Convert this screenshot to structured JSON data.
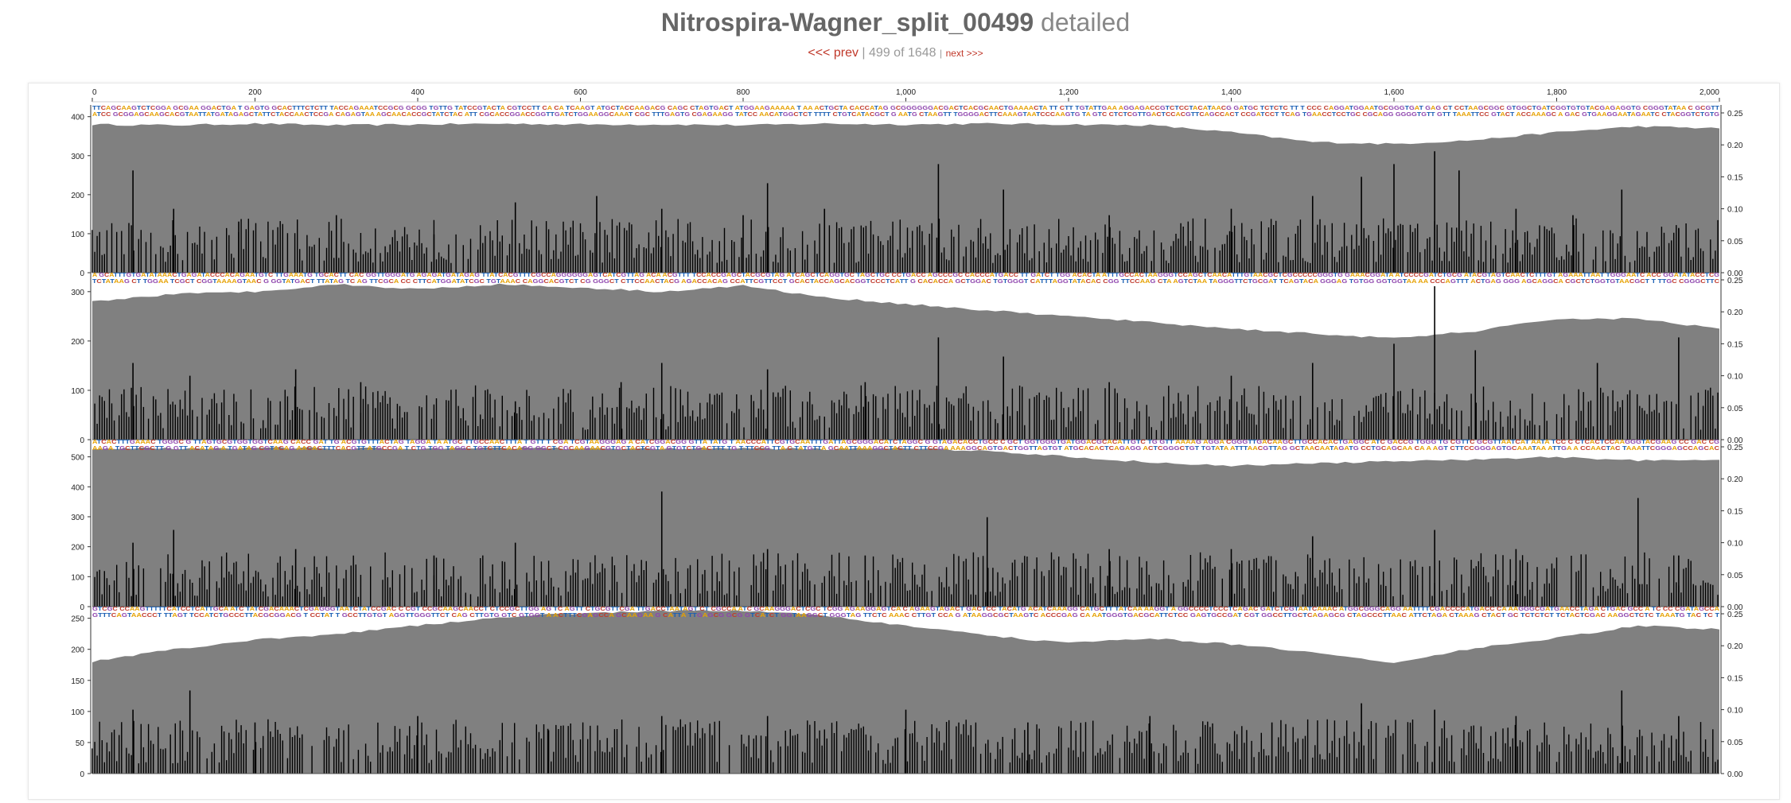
{
  "header": {
    "title_bold": "Nitrospira-Wagner_split_00499",
    "title_suffix": "detailed",
    "prev_label": "<<< prev",
    "position": "499 of 1648",
    "next_label": "next >>>"
  },
  "chart_data": {
    "type": "area",
    "x_ticks": [
      "0",
      "200",
      "400",
      "600",
      "800",
      "1,000",
      "1,200",
      "1,400",
      "1,600",
      "1,800",
      "2,000"
    ],
    "x_range": [
      0,
      2000
    ],
    "right_ticks": [
      "0.25",
      "0.20",
      "0.15",
      "0.10",
      "0.05",
      "0.00"
    ],
    "right_range": [
      0,
      0.25
    ],
    "sample_labels_note": "",
    "colors": {
      "coverage": "#808080",
      "variability": "#000000",
      "A": "#e6a100",
      "C": "#c0392b",
      "G": "#8e44ad",
      "T": "#1a5fb4"
    },
    "samples": [
      {
        "y_ticks": [
          "400",
          "300",
          "200",
          "100",
          "0"
        ],
        "ylim": [
          0,
          430
        ],
        "coverage_x": [
          0,
          100,
          200,
          300,
          400,
          500,
          600,
          700,
          800,
          900,
          1000,
          1100,
          1200,
          1300,
          1400,
          1500,
          1600,
          1700,
          1800,
          1900,
          2000
        ],
        "coverage_y": [
          380,
          378,
          382,
          378,
          380,
          382,
          380,
          380,
          378,
          382,
          380,
          382,
          380,
          378,
          360,
          335,
          330,
          340,
          360,
          375,
          370
        ],
        "variability_x": [
          50,
          100,
          180,
          300,
          420,
          520,
          620,
          700,
          800,
          830,
          900,
          1040,
          1120,
          1250,
          1400,
          1500,
          1560,
          1600,
          1650,
          1680,
          1750,
          1820,
          1880,
          1950
        ],
        "variability_y": [
          0.16,
          0.1,
          0.08,
          0.09,
          0.06,
          0.11,
          0.12,
          0.1,
          0.09,
          0.14,
          0.1,
          0.17,
          0.13,
          0.09,
          0.1,
          0.12,
          0.15,
          0.17,
          0.19,
          0.16,
          0.1,
          0.09,
          0.13,
          0.07
        ]
      },
      {
        "y_ticks": [
          "300",
          "200",
          "100",
          "0"
        ],
        "ylim": [
          0,
          340
        ],
        "coverage_x": [
          0,
          100,
          200,
          300,
          400,
          500,
          600,
          700,
          800,
          900,
          1000,
          1100,
          1200,
          1300,
          1400,
          1500,
          1600,
          1700,
          1800,
          1900,
          2000
        ],
        "coverage_y": [
          280,
          295,
          300,
          315,
          305,
          315,
          308,
          300,
          312,
          288,
          275,
          262,
          250,
          238,
          225,
          215,
          205,
          220,
          245,
          245,
          225
        ],
        "variability_x": [
          50,
          120,
          250,
          330,
          520,
          650,
          700,
          830,
          950,
          1040,
          1120,
          1250,
          1400,
          1500,
          1600,
          1650,
          1700,
          1850,
          1950
        ],
        "variability_y": [
          0.12,
          0.1,
          0.11,
          0.09,
          0.06,
          0.09,
          0.12,
          0.11,
          0.09,
          0.16,
          0.13,
          0.09,
          0.1,
          0.12,
          0.15,
          0.24,
          0.14,
          0.12,
          0.16
        ]
      },
      {
        "y_ticks": [
          "500",
          "400",
          "300",
          "200",
          "100",
          "0"
        ],
        "ylim": [
          0,
          560
        ],
        "coverage_x": [
          0,
          100,
          200,
          300,
          400,
          500,
          600,
          700,
          800,
          900,
          1000,
          1100,
          1200,
          1300,
          1400,
          1500,
          1600,
          1700,
          1800,
          1900,
          2000
        ],
        "coverage_y": [
          528,
          528,
          530,
          528,
          528,
          530,
          528,
          528,
          528,
          526,
          528,
          520,
          500,
          482,
          470,
          478,
          485,
          490,
          500,
          488,
          490
        ],
        "variability_x": [
          50,
          100,
          250,
          420,
          520,
          700,
          830,
          950,
          1100,
          1250,
          1400,
          1500,
          1650,
          1750,
          1900,
          1950
        ],
        "variability_y": [
          0.1,
          0.12,
          0.09,
          0.08,
          0.1,
          0.18,
          0.09,
          0.08,
          0.14,
          0.09,
          0.09,
          0.11,
          0.12,
          0.09,
          0.17,
          0.08
        ]
      },
      {
        "y_ticks": [
          "250",
          "200",
          "150",
          "100",
          "50",
          "0"
        ],
        "ylim": [
          0,
          270
        ],
        "coverage_x": [
          0,
          100,
          200,
          300,
          400,
          500,
          600,
          700,
          800,
          900,
          1000,
          1100,
          1200,
          1300,
          1400,
          1500,
          1600,
          1700,
          1800,
          1900,
          2000
        ],
        "coverage_y": [
          180,
          200,
          215,
          225,
          238,
          252,
          258,
          262,
          262,
          254,
          238,
          222,
          210,
          218,
          208,
          195,
          178,
          202,
          218,
          238,
          232
        ],
        "variability_x": [
          50,
          120,
          200,
          400,
          560,
          700,
          830,
          1000,
          1150,
          1300,
          1450,
          1560,
          1650,
          1750,
          1880,
          1950
        ],
        "variability_y": [
          0.1,
          0.13,
          0.08,
          0.09,
          0.07,
          0.09,
          0.09,
          0.1,
          0.08,
          0.09,
          0.08,
          0.11,
          0.1,
          0.09,
          0.13,
          0.09
        ]
      }
    ]
  }
}
